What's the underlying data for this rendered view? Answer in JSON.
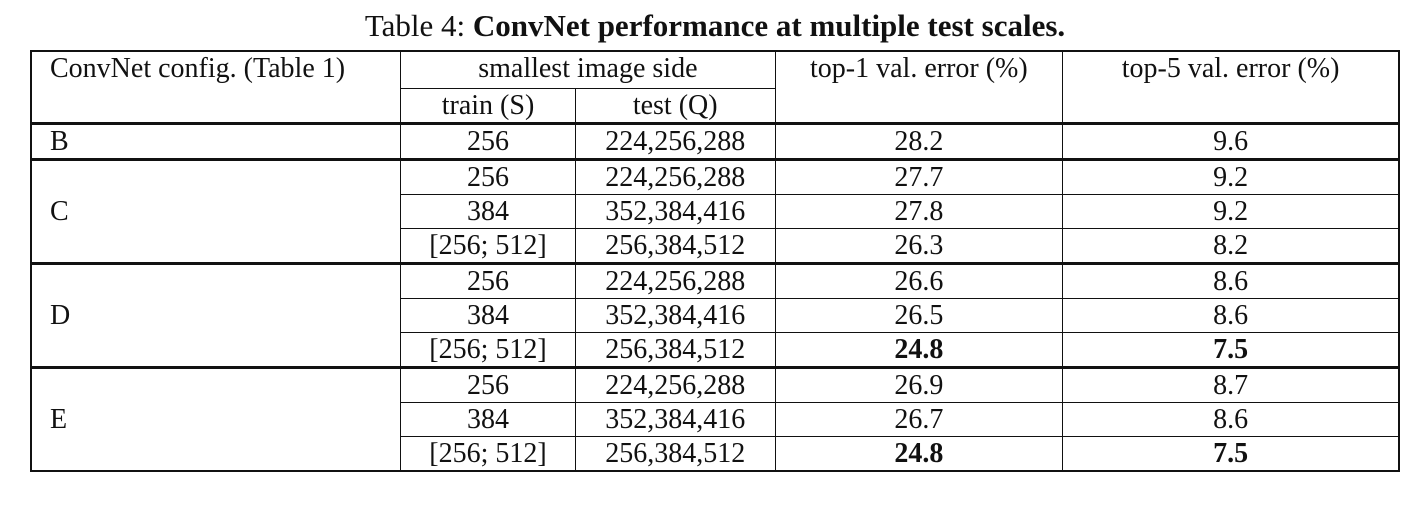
{
  "caption": {
    "label": "Table 4:",
    "title": "ConvNet performance at multiple test scales."
  },
  "table": {
    "header": {
      "config": "ConvNet config. (Table 1)",
      "side": "smallest image side",
      "train": "train (S)",
      "test": "test (Q)",
      "top1": "top-1 val. error (%)",
      "top5": "top-5 val. error (%)"
    },
    "groups": [
      {
        "config": "B",
        "rows": [
          [
            "256",
            "224,256,288",
            28.2,
            9.6
          ]
        ]
      },
      {
        "config": "C",
        "rows": [
          [
            "256",
            "224,256,288",
            27.7,
            9.2
          ],
          [
            "384",
            "352,384,416",
            27.8,
            9.2
          ],
          [
            "[256; 512]",
            "256,384,512",
            26.3,
            8.2
          ]
        ]
      },
      {
        "config": "D",
        "rows": [
          [
            "256",
            "224,256,288",
            26.6,
            8.6
          ],
          [
            "384",
            "352,384,416",
            26.5,
            8.6
          ],
          [
            "[256; 512]",
            "256,384,512",
            24.8,
            7.5
          ]
        ]
      },
      {
        "config": "E",
        "rows": [
          [
            "256",
            "224,256,288",
            26.9,
            8.7
          ],
          [
            "384",
            "352,384,416",
            26.7,
            8.6
          ],
          [
            "[256; 512]",
            "256,384,512",
            24.8,
            7.5
          ]
        ]
      }
    ]
  }
}
